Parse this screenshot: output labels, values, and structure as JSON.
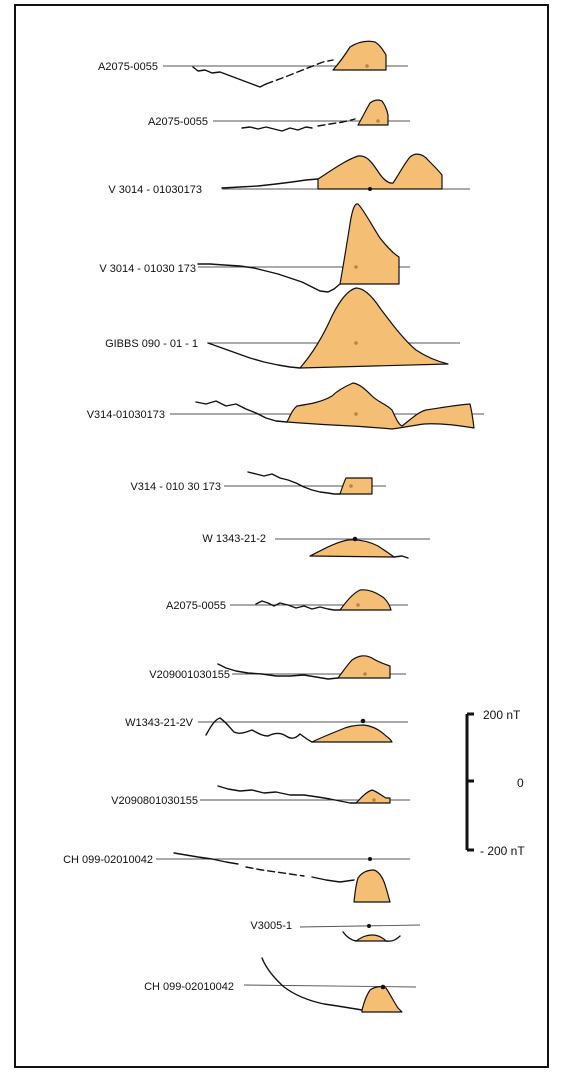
{
  "fill_color": "#F4BE74",
  "line_color": "#111111",
  "profiles": [
    {
      "label": "A2075-0055"
    },
    {
      "label": "A2075-0055"
    },
    {
      "label": "V 3014 - 01030173"
    },
    {
      "label": "V 3014 - 01030 173"
    },
    {
      "label": "GIBBS 090 - 01 - 1"
    },
    {
      "label": "V314-01030173"
    },
    {
      "label": "V314 - 010 30 173"
    },
    {
      "label": "W 1343-21-2"
    },
    {
      "label": "A2075-0055"
    },
    {
      "label": "V209001030155"
    },
    {
      "label": "W1343-21-2V"
    },
    {
      "label": "V2090801030155"
    },
    {
      "label": "CH 099-02010042"
    },
    {
      "label": "V3005-1"
    },
    {
      "label": "CH 099-02010042"
    }
  ],
  "scale_bar": {
    "top_label": "200 nT",
    "mid_label": "0",
    "bottom_label": "- 200 nT"
  }
}
